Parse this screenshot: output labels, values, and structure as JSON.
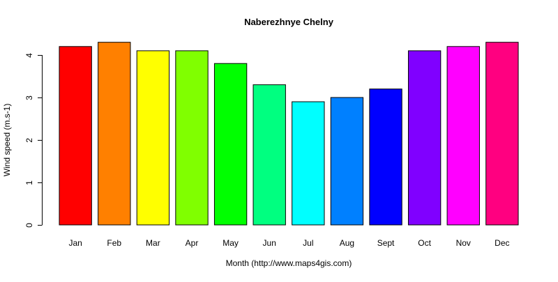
{
  "chart_data": {
    "type": "bar",
    "title": "Naberezhnye Chelny",
    "xlabel": "Month (http://www.maps4gis.com)",
    "ylabel": "Wind speed (m.s-1)",
    "categories": [
      "Jan",
      "Feb",
      "Mar",
      "Apr",
      "May",
      "Jun",
      "Jul",
      "Aug",
      "Sept",
      "Oct",
      "Nov",
      "Dec"
    ],
    "values": [
      4.2,
      4.3,
      4.1,
      4.1,
      3.8,
      3.3,
      2.9,
      3.0,
      3.2,
      4.1,
      4.2,
      4.3
    ],
    "colors": [
      "#FF0000",
      "#FF8000",
      "#FFFF00",
      "#80FF00",
      "#00FF00",
      "#00FF80",
      "#00FFFF",
      "#0080FF",
      "#0000FF",
      "#8000FF",
      "#FF00FF",
      "#FF0080"
    ],
    "yticks": [
      0,
      1,
      2,
      3,
      4
    ],
    "ylim": [
      0,
      4.5
    ],
    "grid": false,
    "legend": "none"
  }
}
